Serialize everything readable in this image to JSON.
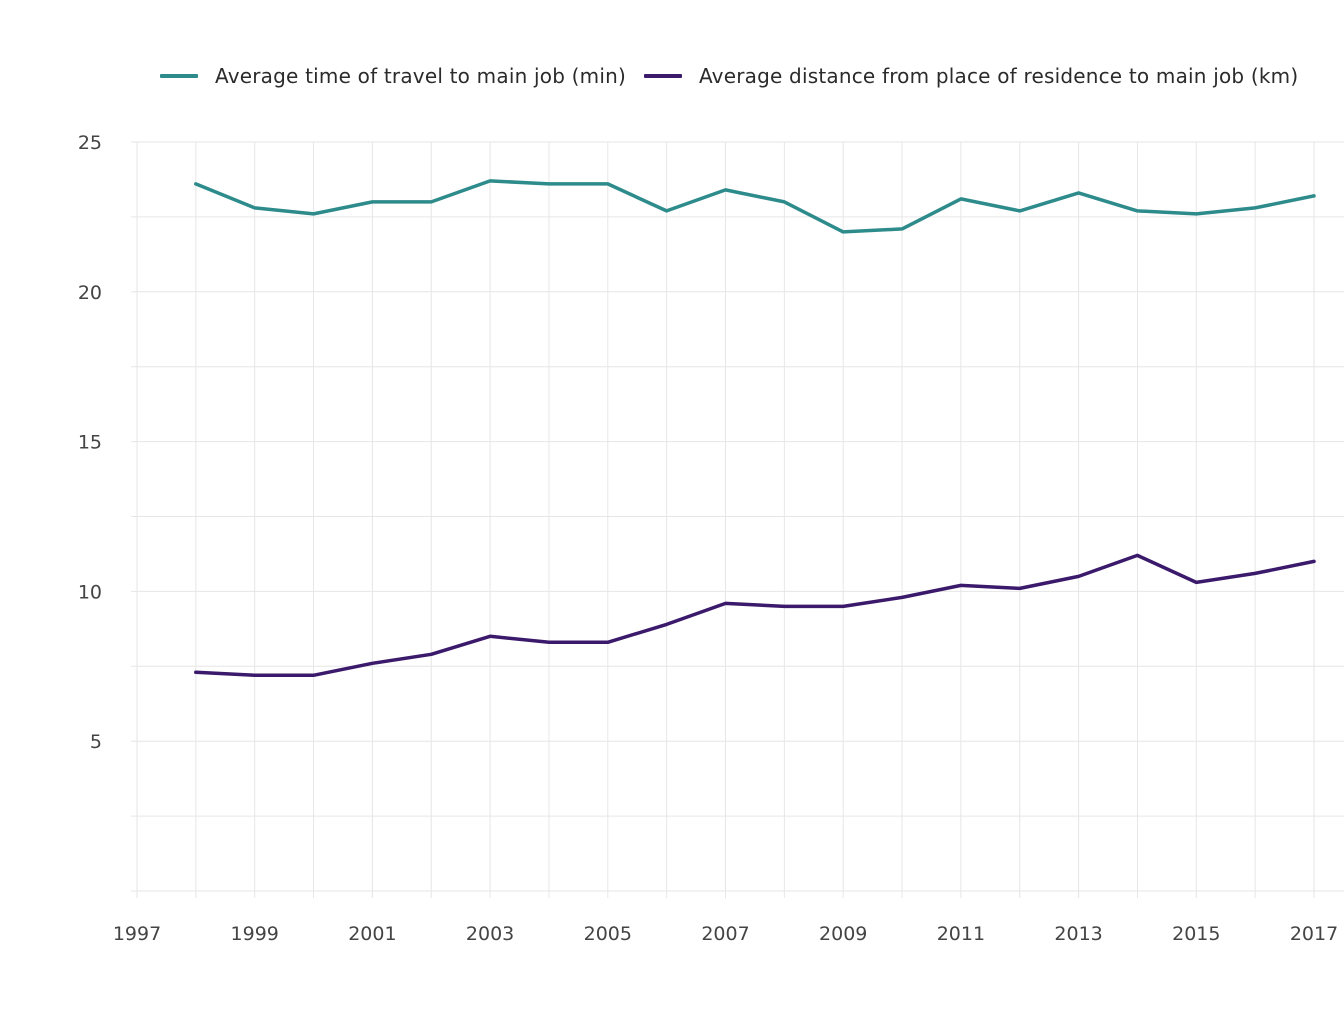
{
  "chart_data": {
    "type": "line",
    "title": "",
    "xlabel": "",
    "ylabel": "",
    "xlim": [
      1997,
      2017
    ],
    "ylim": [
      0,
      25
    ],
    "x_ticks": [
      1997,
      1999,
      2001,
      2003,
      2005,
      2007,
      2009,
      2011,
      2013,
      2015,
      2017
    ],
    "y_ticks": [
      5,
      10,
      15,
      20,
      25
    ],
    "grid": true,
    "legend_position": "top",
    "x": [
      1998,
      1999,
      2000,
      2001,
      2002,
      2003,
      2004,
      2005,
      2006,
      2007,
      2008,
      2009,
      2010,
      2011,
      2012,
      2013,
      2014,
      2015,
      2016,
      2017
    ],
    "series": [
      {
        "name": "Average time of travel to main job (min)",
        "color": "#2e8b8b",
        "values": [
          23.6,
          22.8,
          22.6,
          23.0,
          23.0,
          23.7,
          23.6,
          23.6,
          22.7,
          23.4,
          23.0,
          22.0,
          22.1,
          23.1,
          22.7,
          23.3,
          22.7,
          22.6,
          22.8,
          23.2
        ]
      },
      {
        "name": "Average distance from place of residence to main job (km)",
        "color": "#3b1a6b",
        "values": [
          7.3,
          7.2,
          7.2,
          7.6,
          7.9,
          8.5,
          8.3,
          8.3,
          8.9,
          9.6,
          9.5,
          9.5,
          9.8,
          10.2,
          10.1,
          10.5,
          11.2,
          10.3,
          10.6,
          11.0
        ]
      }
    ]
  }
}
